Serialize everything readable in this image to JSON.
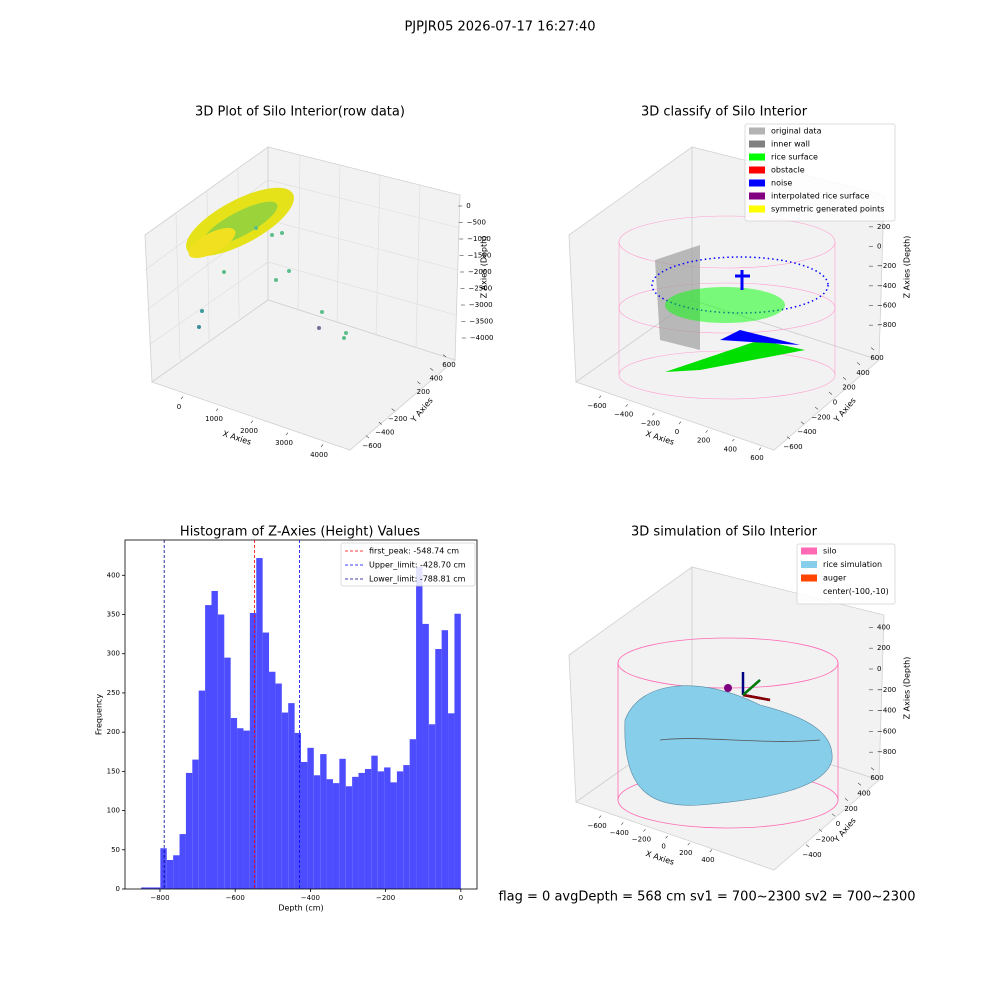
{
  "suptitle": "PJPJR05 2026-07-17 16:27:40",
  "footer": "flag = 0     avgDepth = 568 cm  sv1 = 700~2300  sv2 = 700~2300",
  "chart_data": [
    {
      "type": "scatter3d",
      "title": "3D Plot of Silo Interior(row data)",
      "xlabel": "X Axies",
      "ylabel": "Y Axies",
      "zlabel": "Z Axies (Depth)",
      "xlim": [
        -500,
        4300
      ],
      "ylim": [
        -700,
        700
      ],
      "zlim": [
        -4200,
        300
      ],
      "xticks": [
        0,
        1000,
        2000,
        3000,
        4000
      ],
      "yticks": [
        {
          "value": -600,
          "label": "−600"
        },
        {
          "value": -400,
          "label": "−400"
        },
        {
          "value": -200,
          "label": "−200"
        },
        200,
        400,
        600
      ],
      "zticks": [
        0,
        {
          "value": -500,
          "label": "−500"
        },
        {
          "value": -1000,
          "label": "−1000"
        },
        {
          "value": -1500,
          "label": "−1500"
        },
        {
          "value": -2000,
          "label": "−2000"
        },
        {
          "value": -2500,
          "label": "−2500"
        },
        {
          "value": -3000,
          "label": "−3000"
        },
        {
          "value": -3500,
          "label": "−3500"
        },
        {
          "value": -4000,
          "label": "−4000"
        }
      ]
    },
    {
      "type": "scatter3d",
      "title": "3D classify of Silo Interior",
      "xlabel": "X Axies",
      "ylabel": "Y Axies",
      "zlabel": "Z Axies (Depth)",
      "xlim": [
        -700,
        700
      ],
      "ylim": [
        -700,
        700
      ],
      "zlim": [
        -900,
        300
      ],
      "xticks": [
        {
          "value": -600,
          "label": "−600"
        },
        {
          "value": -400,
          "label": "−400"
        },
        {
          "value": -200,
          "label": "−200"
        },
        0,
        200,
        400,
        600
      ],
      "yticks": [
        {
          "value": -600,
          "label": "−600"
        },
        {
          "value": -400,
          "label": "−400"
        },
        {
          "value": -200,
          "label": "−200"
        },
        0,
        200,
        400,
        600
      ],
      "zticks": [
        200,
        0,
        {
          "value": -200,
          "label": "−200"
        },
        {
          "value": -400,
          "label": "−400"
        },
        {
          "value": -600,
          "label": "−600"
        },
        {
          "value": -800,
          "label": "−800"
        }
      ],
      "legend": [
        {
          "name": "original data",
          "color": "#b3b3b3"
        },
        {
          "name": "inner wall",
          "color": "#808080"
        },
        {
          "name": "rice surface",
          "color": "#00ff00"
        },
        {
          "name": "obstacle",
          "color": "#ff0000"
        },
        {
          "name": "noise",
          "color": "#0000ff"
        },
        {
          "name": "interpolated rice surface",
          "color": "#800080"
        },
        {
          "name": "symmetric generated points",
          "color": "#ffff00"
        }
      ]
    },
    {
      "type": "histogram",
      "title": "Histogram of Z-Axies (Height) Values",
      "xlabel": "Depth (cm)",
      "ylabel": "Frequency",
      "color": "#4d4dff",
      "bins": [
        -850,
        -833,
        -816,
        -799,
        -782,
        -765,
        -748,
        -731,
        -714,
        -697,
        -680,
        -663,
        -646,
        -629,
        -612,
        -595,
        -578,
        -561,
        -544,
        -527,
        -510,
        -493,
        -476,
        -459,
        -442,
        -425,
        -408,
        -391,
        -374,
        -357,
        -340,
        -323,
        -306,
        -289,
        -272,
        -255,
        -238,
        -221,
        -204,
        -187,
        -170,
        -153,
        -136,
        -119,
        -102,
        -85,
        -68,
        -51,
        -34,
        -17,
        0
      ],
      "values": [
        2,
        2,
        2,
        52,
        37,
        43,
        70,
        148,
        165,
        253,
        362,
        380,
        350,
        295,
        218,
        205,
        202,
        352,
        422,
        327,
        277,
        262,
        225,
        237,
        199,
        162,
        180,
        145,
        172,
        140,
        135,
        166,
        131,
        143,
        148,
        153,
        170,
        150,
        155,
        136,
        150,
        158,
        191,
        411,
        338,
        210,
        306,
        330,
        224,
        351
      ],
      "xlim": [
        -893,
        43
      ],
      "ylim": [
        0,
        445
      ],
      "xticks": [
        {
          "value": -800,
          "label": "−800"
        },
        {
          "value": -600,
          "label": "−600"
        },
        {
          "value": -400,
          "label": "−400"
        },
        {
          "value": -200,
          "label": "−200"
        },
        0
      ],
      "yticks": [
        0,
        50,
        100,
        150,
        200,
        250,
        300,
        350,
        400
      ],
      "vlines": [
        {
          "value": -548.74,
          "label": "first_peak: -548.74 cm",
          "color": "#ff0000"
        },
        {
          "value": -428.7,
          "label": "Upper_limit: -428.70 cm",
          "color": "#0000ff"
        },
        {
          "value": -788.81,
          "label": "Lower_limit: -788.81 cm",
          "color": "#00008b"
        }
      ]
    },
    {
      "type": "surface3d",
      "title": "3D simulation of Silo Interior",
      "xlabel": "X Axies",
      "ylabel": "Y Axies",
      "zlabel": "Z Axies (Depth)",
      "xlim": [
        -700,
        500
      ],
      "ylim": [
        -500,
        700
      ],
      "zlim": [
        -900,
        500
      ],
      "xticks": [
        {
          "value": -600,
          "label": "−600"
        },
        {
          "value": -400,
          "label": "−400"
        },
        {
          "value": -200,
          "label": "−200"
        },
        0,
        200,
        400
      ],
      "yticks": [
        {
          "value": -400,
          "label": "−400"
        },
        {
          "value": -200,
          "label": "−200"
        },
        0,
        200,
        400,
        600
      ],
      "zticks": [
        400,
        200,
        0,
        {
          "value": -200,
          "label": "−200"
        },
        {
          "value": -400,
          "label": "−400"
        },
        {
          "value": -600,
          "label": "−600"
        },
        {
          "value": -800,
          "label": "−800"
        }
      ],
      "legend": [
        {
          "name": "silo",
          "color": "#ff69b4"
        },
        {
          "name": "rice simulation",
          "color": "#87ceeb"
        },
        {
          "name": "auger",
          "color": "#ff4500"
        },
        {
          "name": "center(-100,-10)"
        }
      ]
    }
  ]
}
